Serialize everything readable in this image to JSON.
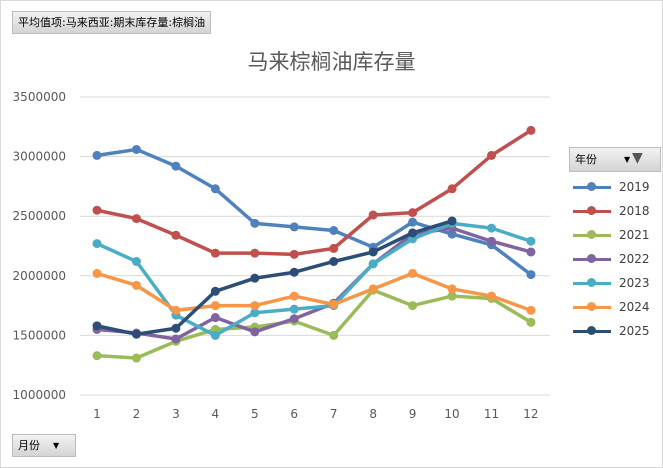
{
  "value_field": "平均值项:马来西亚:期末库存量:棕榈油",
  "axis_field": "月份",
  "legend_field": "年份",
  "chart_data": {
    "type": "line",
    "title": "马来棕榈油库存量",
    "categories": [
      "1",
      "2",
      "3",
      "4",
      "5",
      "6",
      "7",
      "8",
      "9",
      "10",
      "11",
      "12"
    ],
    "ylim": [
      1000000,
      3500000
    ],
    "yticks": [
      "1000000",
      "1500000",
      "2000000",
      "2500000",
      "3000000",
      "3500000"
    ],
    "grid": true,
    "legend_position": "right",
    "series": [
      {
        "name": "2019",
        "color": "#4f81bd",
        "values": [
          3010000,
          3060000,
          2920000,
          2730000,
          2440000,
          2410000,
          2380000,
          2240000,
          2450000,
          2350000,
          2260000,
          2010000
        ]
      },
      {
        "name": "2018",
        "color": "#c0504d",
        "values": [
          2550000,
          2480000,
          2340000,
          2190000,
          2190000,
          2180000,
          2230000,
          2510000,
          2530000,
          2730000,
          3010000,
          3220000
        ]
      },
      {
        "name": "2021",
        "color": "#9bbb59",
        "values": [
          1330000,
          1310000,
          1450000,
          1550000,
          1570000,
          1620000,
          1500000,
          1880000,
          1750000,
          1830000,
          1810000,
          1610000
        ]
      },
      {
        "name": "2022",
        "color": "#8064a2",
        "values": [
          1550000,
          1520000,
          1470000,
          1650000,
          1530000,
          1640000,
          1770000,
          2100000,
          2350000,
          2400000,
          2290000,
          2200000
        ]
      },
      {
        "name": "2023",
        "color": "#4bacc6",
        "values": [
          2270000,
          2120000,
          1670000,
          1500000,
          1690000,
          1720000,
          1750000,
          2100000,
          2310000,
          2440000,
          2400000,
          2290000
        ]
      },
      {
        "name": "2024",
        "color": "#f79646",
        "values": [
          2020000,
          1920000,
          1710000,
          1750000,
          1750000,
          1830000,
          1760000,
          1890000,
          2020000,
          1890000,
          1830000,
          1710000
        ]
      },
      {
        "name": "2025",
        "color": "#2c4d75",
        "values": [
          1580000,
          1510000,
          1560000,
          1870000,
          1980000,
          2030000,
          2120000,
          2200000,
          2360000,
          2460000,
          null,
          null
        ]
      }
    ]
  }
}
